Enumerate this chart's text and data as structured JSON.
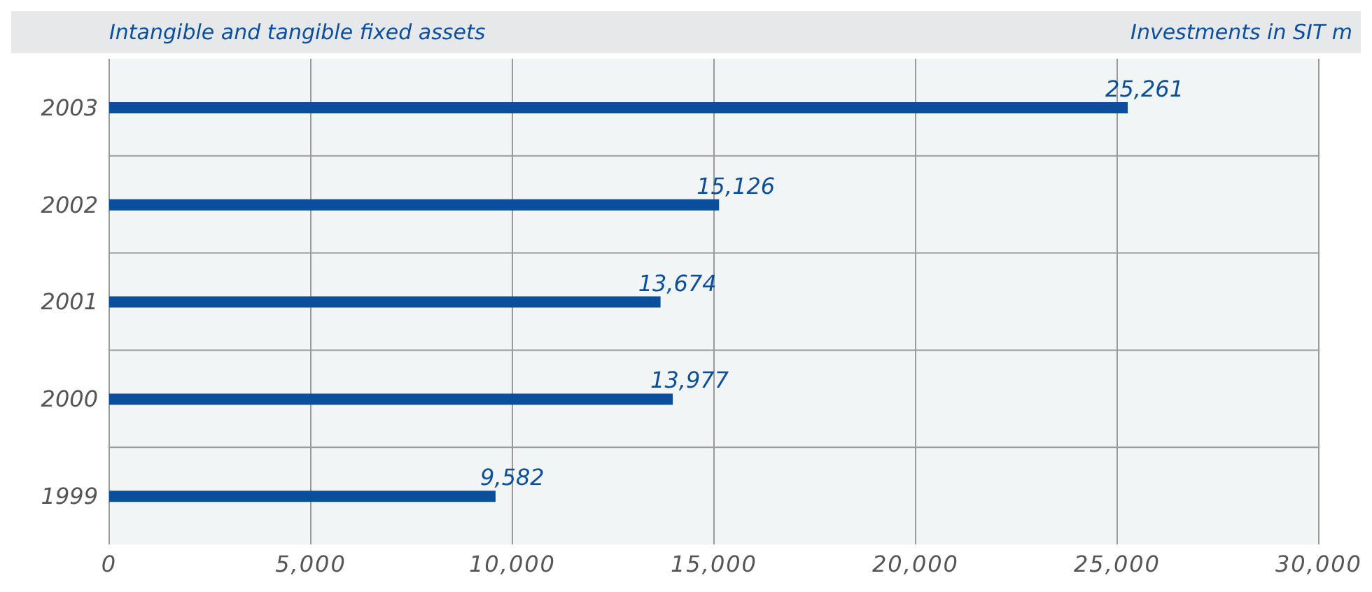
{
  "chart_data": {
    "type": "bar",
    "orientation": "horizontal",
    "title": "Intangible and tangible fixed assets",
    "xlabel": "Investments in SIT m",
    "categories": [
      "2003",
      "2002",
      "2001",
      "2000",
      "1999"
    ],
    "values": [
      25261,
      15126,
      13674,
      13977,
      9582
    ],
    "color": "#0b4f9c",
    "xlim": [
      0,
      30000
    ],
    "xticks": [
      0,
      {
        "value": 5000,
        "label": "5,000"
      },
      {
        "value": 10000,
        "label": "10,000"
      },
      {
        "value": 15000,
        "label": "15,000"
      },
      {
        "value": 20000,
        "label": "20,000"
      },
      {
        "value": 25000,
        "label": "25,000"
      },
      {
        "value": 30000,
        "label": "30,000"
      }
    ],
    "value_labels": [
      "25,261",
      "15,126",
      "13,674",
      "13,977",
      "9,582"
    ],
    "grid": true
  }
}
